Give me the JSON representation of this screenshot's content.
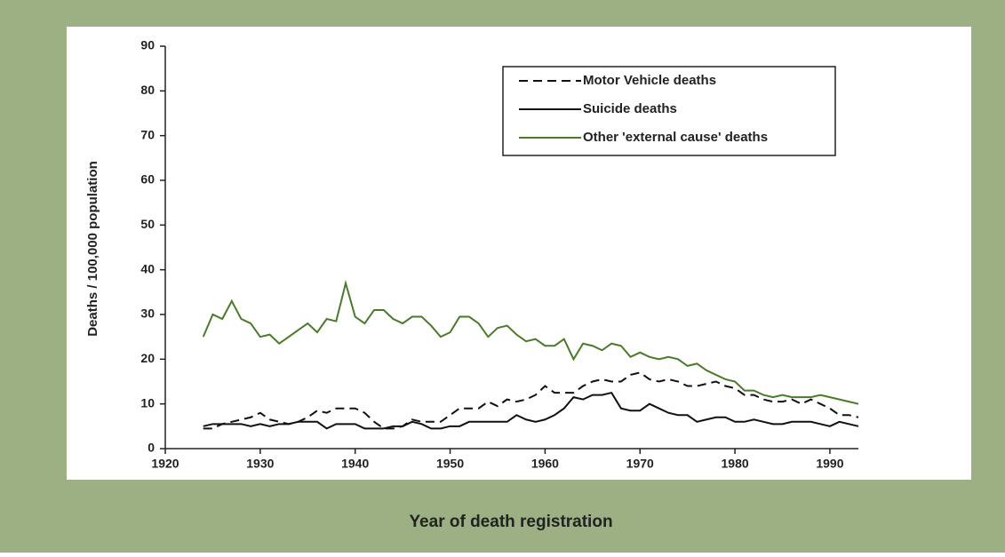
{
  "chart_data": {
    "type": "line",
    "x_label": "Year of death registration",
    "y_label": "Deaths / 100,000 population",
    "x": [
      1924,
      1925,
      1926,
      1927,
      1928,
      1929,
      1930,
      1931,
      1932,
      1933,
      1934,
      1935,
      1936,
      1937,
      1938,
      1939,
      1940,
      1941,
      1942,
      1943,
      1944,
      1945,
      1946,
      1947,
      1948,
      1949,
      1950,
      1951,
      1952,
      1953,
      1954,
      1955,
      1956,
      1957,
      1958,
      1959,
      1960,
      1961,
      1962,
      1963,
      1964,
      1965,
      1966,
      1967,
      1968,
      1969,
      1970,
      1971,
      1972,
      1973,
      1974,
      1975,
      1976,
      1977,
      1978,
      1979,
      1980,
      1981,
      1982,
      1983,
      1984,
      1985,
      1986,
      1987,
      1988,
      1989,
      1990,
      1991,
      1992,
      1993
    ],
    "series": [
      {
        "name": "Motor Vehicle deaths",
        "color": "#111111",
        "dash": true,
        "values": [
          4.5,
          4.5,
          5.5,
          6,
          6.5,
          7,
          8,
          6.5,
          6,
          5.5,
          6,
          7,
          8.5,
          8,
          9,
          9,
          9,
          8,
          6,
          4.5,
          4.5,
          5,
          6.5,
          6,
          6,
          6,
          7.5,
          9,
          9,
          9,
          10.5,
          9.5,
          11,
          10.5,
          11,
          12,
          14,
          12.5,
          12.5,
          12.5,
          14,
          15,
          15.5,
          15,
          15,
          16.5,
          17,
          15.5,
          15,
          15.5,
          15,
          14,
          14,
          14.5,
          15,
          14,
          13.5,
          12,
          12,
          11,
          10.5,
          10.5,
          11,
          10,
          11,
          10,
          9,
          7.5,
          7.5,
          7
        ]
      },
      {
        "name": "Suicide deaths",
        "color": "#111111",
        "dash": false,
        "values": [
          5,
          5.5,
          5.5,
          5.5,
          5.5,
          5,
          5.5,
          5,
          5.5,
          5.5,
          6,
          6,
          6,
          4.5,
          5.5,
          5.5,
          5.5,
          4.5,
          4.5,
          4.5,
          5,
          5,
          6,
          5.5,
          4.5,
          4.5,
          5,
          5,
          6,
          6,
          6,
          6,
          6,
          7.5,
          6.5,
          6,
          6.5,
          7.5,
          9,
          11.5,
          11,
          12,
          12,
          12.5,
          9,
          8.5,
          8.5,
          10,
          9,
          8,
          7.5,
          7.5,
          6,
          6.5,
          7,
          7,
          6,
          6,
          6.5,
          6,
          5.5,
          5.5,
          6,
          6,
          6,
          5.5,
          5,
          6,
          5.5,
          5
        ]
      },
      {
        "name": "Other 'external cause' deaths",
        "color": "#4a7a2a",
        "dash": false,
        "values": [
          25,
          30,
          29,
          33,
          29,
          28,
          25,
          25.5,
          23.5,
          25,
          26.5,
          28,
          26,
          29,
          28.5,
          37,
          29.5,
          28,
          31,
          31,
          29,
          28,
          29.5,
          29.5,
          27.5,
          25,
          26,
          29.5,
          29.5,
          28,
          25,
          27,
          27.5,
          25.5,
          24,
          24.5,
          23,
          23,
          24.5,
          20,
          23.5,
          23,
          22,
          23.5,
          23,
          20.5,
          21.5,
          20.5,
          20,
          20.5,
          20,
          18.5,
          19,
          17.5,
          16.5,
          15.5,
          15,
          13,
          13,
          12,
          11.5,
          12,
          11.5,
          11.5,
          11.5,
          12,
          11.5,
          11,
          10.5,
          10
        ]
      }
    ],
    "xlim": [
      1920,
      1993
    ],
    "xticks": [
      1920,
      1930,
      1940,
      1950,
      1960,
      1970,
      1980,
      1990
    ],
    "ylim": [
      0,
      90
    ],
    "yticks": [
      0,
      10,
      20,
      30,
      40,
      50,
      60,
      70,
      80,
      90
    ],
    "legend": "upper right"
  }
}
